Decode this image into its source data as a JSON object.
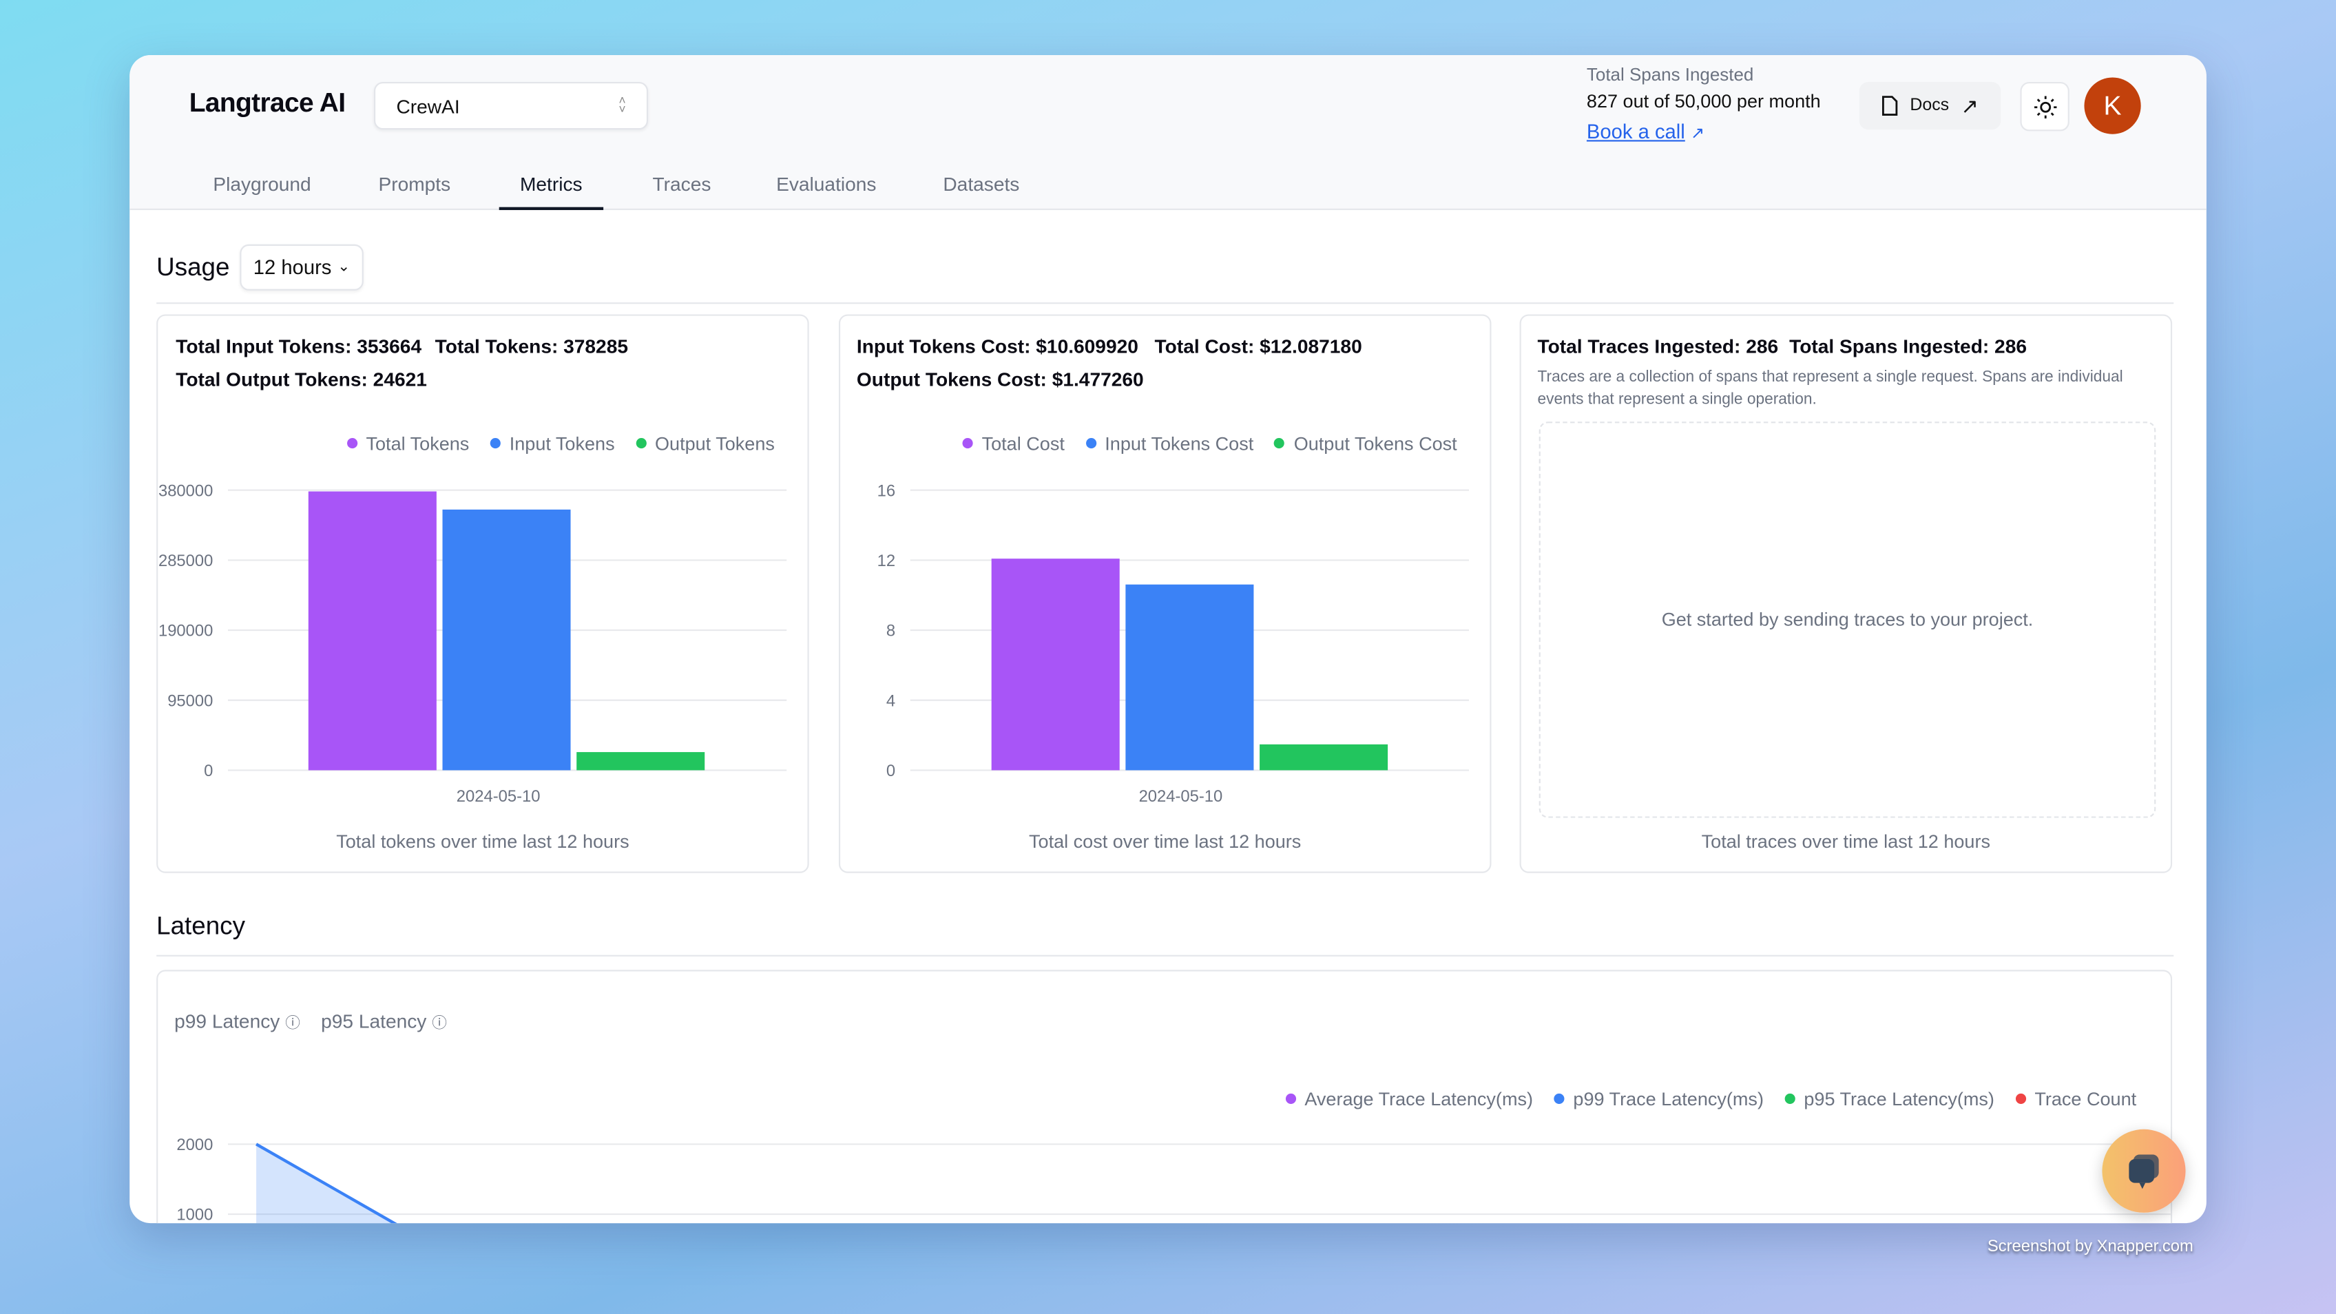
{
  "header": {
    "brand": "Langtrace AI",
    "project_select": "CrewAI",
    "spans_label": "Total Spans Ingested",
    "spans_value": "827 out of 50,000 per month",
    "book_call": "Book a call",
    "docs": "Docs",
    "avatar_initial": "K",
    "avatar_color": "#c2410c"
  },
  "tabs": [
    {
      "label": "Playground"
    },
    {
      "label": "Prompts"
    },
    {
      "label": "Metrics",
      "active": true
    },
    {
      "label": "Traces"
    },
    {
      "label": "Evaluations"
    },
    {
      "label": "Datasets"
    }
  ],
  "usage": {
    "title": "Usage",
    "range": "12 hours",
    "tokens": {
      "total_input": "Total Input Tokens: 353664",
      "total": "Total Tokens: 378285",
      "total_output": "Total Output Tokens: 24621",
      "caption": "Total tokens over time last 12 hours"
    },
    "cost": {
      "input": "Input Tokens Cost: $10.609920",
      "total": "Total Cost: $12.087180",
      "output": "Output Tokens Cost: $1.477260",
      "caption": "Total cost over time last 12 hours"
    },
    "traces": {
      "total_traces": "Total Traces Ingested: 286",
      "total_spans": "Total Spans Ingested: 286",
      "description": "Traces are a collection of spans that represent a single request. Spans are individual events that represent a single operation.",
      "empty": "Get started by sending traces to your project.",
      "caption": "Total traces over time last 12 hours"
    }
  },
  "latency": {
    "title": "Latency",
    "tabs": [
      "p99 Latency",
      "p95 Latency"
    ]
  },
  "watermark": "Screenshot by Xnapper.com",
  "chart_data": [
    {
      "type": "bar",
      "categories": [
        "2024-05-10"
      ],
      "series": [
        {
          "name": "Total Tokens",
          "color": "#a855f7",
          "values": [
            378285
          ]
        },
        {
          "name": "Input Tokens",
          "color": "#3b82f6",
          "values": [
            353664
          ]
        },
        {
          "name": "Output Tokens",
          "color": "#22c55e",
          "values": [
            24621
          ]
        }
      ],
      "yticks": [
        0,
        95000,
        190000,
        285000,
        380000
      ],
      "ylim": [
        0,
        380000
      ],
      "grid": true,
      "legend": "top-right"
    },
    {
      "type": "bar",
      "categories": [
        "2024-05-10"
      ],
      "series": [
        {
          "name": "Total Cost",
          "color": "#a855f7",
          "values": [
            12.08718
          ]
        },
        {
          "name": "Input Tokens Cost",
          "color": "#3b82f6",
          "values": [
            10.60992
          ]
        },
        {
          "name": "Output Tokens Cost",
          "color": "#22c55e",
          "values": [
            1.47726
          ]
        }
      ],
      "yticks": [
        0,
        4,
        8,
        12,
        16
      ],
      "ylim": [
        0,
        16
      ],
      "grid": true,
      "legend": "top-right"
    },
    {
      "type": "area",
      "series": [
        {
          "name": "Average Trace Latency(ms)",
          "color": "#a855f7"
        },
        {
          "name": "p99 Trace Latency(ms)",
          "color": "#3b82f6"
        },
        {
          "name": "p95 Trace Latency(ms)",
          "color": "#22c55e"
        },
        {
          "name": "Trace Count",
          "color": "#ef4444"
        }
      ],
      "visible_ytick_labels": [
        "2000",
        "1000"
      ],
      "grid": true,
      "legend": "top-right"
    }
  ]
}
